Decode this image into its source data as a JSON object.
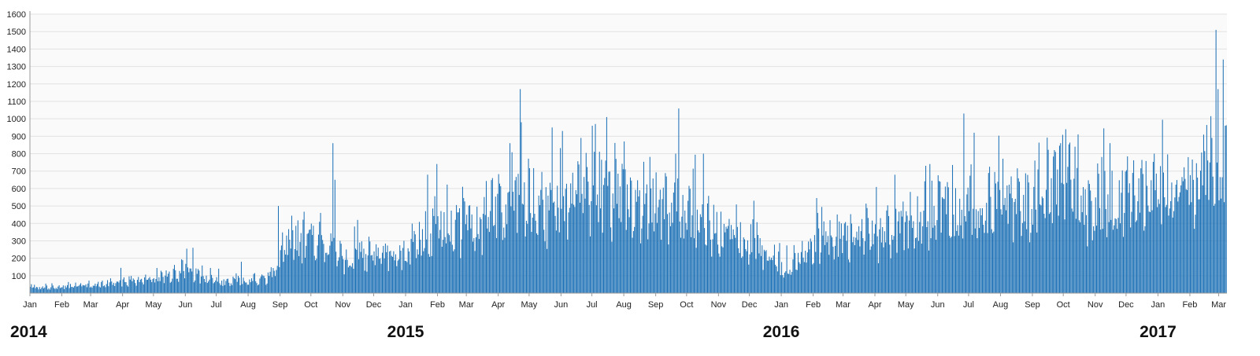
{
  "colors": {
    "bar": "#1a6fb5",
    "plot_background": "#fafafa",
    "grid": "#e2e2e2",
    "axis": "#9a9a9a",
    "text": "#222222"
  },
  "chart_data": {
    "type": "bar",
    "title": "",
    "xlabel": "",
    "ylabel": "",
    "x_range": [
      "2014-01-01",
      "2017-03-08"
    ],
    "ylim": [
      0,
      1600
    ],
    "yticks": [
      100,
      200,
      300,
      400,
      500,
      600,
      700,
      800,
      900,
      1000,
      1100,
      1200,
      1300,
      1400,
      1500,
      1600
    ],
    "grid": true,
    "legend": "none",
    "month_ticks": [
      {
        "date": "2014-01-01",
        "label": "Jan"
      },
      {
        "date": "2014-02-01",
        "label": "Feb"
      },
      {
        "date": "2014-03-01",
        "label": "Mar"
      },
      {
        "date": "2014-04-01",
        "label": "Apr"
      },
      {
        "date": "2014-05-01",
        "label": "May"
      },
      {
        "date": "2014-06-01",
        "label": "Jun"
      },
      {
        "date": "2014-07-01",
        "label": "Jul"
      },
      {
        "date": "2014-08-01",
        "label": "Aug"
      },
      {
        "date": "2014-09-01",
        "label": "Sep"
      },
      {
        "date": "2014-10-01",
        "label": "Oct"
      },
      {
        "date": "2014-11-01",
        "label": "Nov"
      },
      {
        "date": "2014-12-01",
        "label": "Dec"
      },
      {
        "date": "2015-01-01",
        "label": "Jan"
      },
      {
        "date": "2015-02-01",
        "label": "Feb"
      },
      {
        "date": "2015-03-01",
        "label": "Mar"
      },
      {
        "date": "2015-04-01",
        "label": "Apr"
      },
      {
        "date": "2015-05-01",
        "label": "May"
      },
      {
        "date": "2015-06-01",
        "label": "Jun"
      },
      {
        "date": "2015-07-01",
        "label": "Jul"
      },
      {
        "date": "2015-08-01",
        "label": "Aug"
      },
      {
        "date": "2015-09-01",
        "label": "Sep"
      },
      {
        "date": "2015-10-01",
        "label": "Oct"
      },
      {
        "date": "2015-11-01",
        "label": "Nov"
      },
      {
        "date": "2015-12-01",
        "label": "Dec"
      },
      {
        "date": "2016-01-01",
        "label": "Jan"
      },
      {
        "date": "2016-02-01",
        "label": "Feb"
      },
      {
        "date": "2016-03-01",
        "label": "Mar"
      },
      {
        "date": "2016-04-01",
        "label": "Apr"
      },
      {
        "date": "2016-05-01",
        "label": "May"
      },
      {
        "date": "2016-06-01",
        "label": "Jun"
      },
      {
        "date": "2016-07-01",
        "label": "Jul"
      },
      {
        "date": "2016-08-01",
        "label": "Aug"
      },
      {
        "date": "2016-09-01",
        "label": "Sep"
      },
      {
        "date": "2016-10-01",
        "label": "Oct"
      },
      {
        "date": "2016-11-01",
        "label": "Nov"
      },
      {
        "date": "2016-12-01",
        "label": "Dec"
      },
      {
        "date": "2017-01-01",
        "label": "Jan"
      },
      {
        "date": "2017-02-01",
        "label": "Feb"
      },
      {
        "date": "2017-03-01",
        "label": "Mar"
      }
    ],
    "year_labels": [
      {
        "date": "2014-01-01",
        "label": "2014"
      },
      {
        "date": "2015-01-01",
        "label": "2015"
      },
      {
        "date": "2016-01-01",
        "label": "2016"
      },
      {
        "date": "2017-01-01",
        "label": "2017"
      }
    ],
    "series": [
      {
        "type": "daily_bars",
        "start": "2014-01-01",
        "end": "2017-03-08",
        "weekly_pattern": [
          1.0,
          0.9,
          1.12,
          1.22,
          1.18,
          1.08,
          1.0
        ],
        "trend": [
          {
            "date": "2014-01-01",
            "value": 30
          },
          {
            "date": "2014-03-01",
            "value": 48
          },
          {
            "date": "2014-05-01",
            "value": 75
          },
          {
            "date": "2014-06-01",
            "value": 130
          },
          {
            "date": "2014-07-01",
            "value": 65
          },
          {
            "date": "2014-08-01",
            "value": 70
          },
          {
            "date": "2014-08-26",
            "value": 95
          },
          {
            "date": "2014-09-01",
            "value": 250
          },
          {
            "date": "2014-10-01",
            "value": 320
          },
          {
            "date": "2014-10-28",
            "value": 190
          },
          {
            "date": "2014-12-01",
            "value": 210
          },
          {
            "date": "2015-01-01",
            "value": 230
          },
          {
            "date": "2015-02-01",
            "value": 400
          },
          {
            "date": "2015-03-15",
            "value": 360
          },
          {
            "date": "2015-04-20",
            "value": 600
          },
          {
            "date": "2015-05-15",
            "value": 470
          },
          {
            "date": "2015-07-01",
            "value": 610
          },
          {
            "date": "2015-08-01",
            "value": 570
          },
          {
            "date": "2015-09-01",
            "value": 520
          },
          {
            "date": "2015-10-01",
            "value": 480
          },
          {
            "date": "2015-11-01",
            "value": 330
          },
          {
            "date": "2015-12-01",
            "value": 320
          },
          {
            "date": "2015-12-20",
            "value": 240
          },
          {
            "date": "2016-01-01",
            "value": 140
          },
          {
            "date": "2016-02-01",
            "value": 280
          },
          {
            "date": "2016-03-01",
            "value": 320
          },
          {
            "date": "2016-04-01",
            "value": 340
          },
          {
            "date": "2016-05-01",
            "value": 380
          },
          {
            "date": "2016-06-01",
            "value": 460
          },
          {
            "date": "2016-07-01",
            "value": 520
          },
          {
            "date": "2016-08-01",
            "value": 500
          },
          {
            "date": "2016-09-01",
            "value": 560
          },
          {
            "date": "2016-10-01",
            "value": 660
          },
          {
            "date": "2016-11-01",
            "value": 490
          },
          {
            "date": "2016-12-01",
            "value": 560
          },
          {
            "date": "2017-01-01",
            "value": 540
          },
          {
            "date": "2017-02-01",
            "value": 580
          },
          {
            "date": "2017-03-08",
            "value": 820
          }
        ],
        "spikes": [
          {
            "date": "2014-03-30",
            "value": 145
          },
          {
            "date": "2014-06-02",
            "value": 255
          },
          {
            "date": "2014-06-08",
            "value": 260
          },
          {
            "date": "2014-07-25",
            "value": 180
          },
          {
            "date": "2014-08-30",
            "value": 500
          },
          {
            "date": "2014-10-10",
            "value": 460
          },
          {
            "date": "2014-10-22",
            "value": 860
          },
          {
            "date": "2014-10-24",
            "value": 650
          },
          {
            "date": "2014-11-15",
            "value": 420
          },
          {
            "date": "2015-01-20",
            "value": 470
          },
          {
            "date": "2015-02-25",
            "value": 610
          },
          {
            "date": "2015-04-12",
            "value": 860
          },
          {
            "date": "2015-04-22",
            "value": 1170
          },
          {
            "date": "2015-04-23",
            "value": 980
          },
          {
            "date": "2015-05-23",
            "value": 950
          },
          {
            "date": "2015-06-02",
            "value": 930
          },
          {
            "date": "2015-06-20",
            "value": 890
          },
          {
            "date": "2015-07-01",
            "value": 960
          },
          {
            "date": "2015-07-04",
            "value": 970
          },
          {
            "date": "2015-07-15",
            "value": 1010
          },
          {
            "date": "2015-08-01",
            "value": 870
          },
          {
            "date": "2015-09-20",
            "value": 800
          },
          {
            "date": "2015-10-17",
            "value": 800
          },
          {
            "date": "2015-12-05",
            "value": 530
          },
          {
            "date": "2016-02-05",
            "value": 460
          },
          {
            "date": "2016-05-20",
            "value": 730
          },
          {
            "date": "2016-06-26",
            "value": 1030
          },
          {
            "date": "2016-07-06",
            "value": 920
          },
          {
            "date": "2016-09-28",
            "value": 860
          },
          {
            "date": "2016-10-03",
            "value": 940
          },
          {
            "date": "2016-10-15",
            "value": 910
          },
          {
            "date": "2016-11-15",
            "value": 860
          },
          {
            "date": "2016-12-28",
            "value": 800
          },
          {
            "date": "2017-01-30",
            "value": 780
          },
          {
            "date": "2017-02-22",
            "value": 890
          },
          {
            "date": "2017-02-26",
            "value": 1510
          },
          {
            "date": "2017-02-28",
            "value": 1170
          },
          {
            "date": "2017-03-05",
            "value": 1340
          },
          {
            "date": "2017-03-07",
            "value": 960
          }
        ]
      }
    ]
  }
}
